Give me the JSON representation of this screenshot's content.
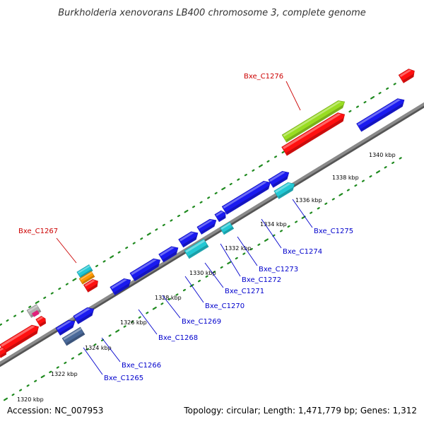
{
  "title": "Burkholderia xenovorans LB400 chromosome 3, complete genome",
  "footer": {
    "accession": "Accession: NC_007953",
    "info": "Topology: circular; Length: 1,471,779 bp; Genes: 1,312"
  },
  "colors": {
    "backbone": "#8a8a8a",
    "tick_dots": "#1f8a1f",
    "label_blue": "#0000cc",
    "label_red": "#cc0000",
    "gene_blue": "#1a1af0",
    "gene_red": "#ff1010",
    "gene_cyan": "#22c8d4",
    "gene_lime": "#99dd22",
    "gene_orange": "#ff9900",
    "gene_pink": "#e0207a",
    "gene_grey": "#b0b0b0",
    "gene_slate": "#4a6a9a"
  },
  "scale_ticks": [
    "1320 kbp",
    "1322 kbp",
    "1324 kbp",
    "1326 kbp",
    "1328 kbp",
    "1330 kbp",
    "1332 kbp",
    "1334 kbp",
    "1336 kbp",
    "1338 kbp",
    "1340 kbp"
  ],
  "gene_labels": [
    {
      "text": "Bxe_C1276",
      "color": "red"
    },
    {
      "text": "Bxe_C1267",
      "color": "red"
    },
    {
      "text": "Bxe_C1275",
      "color": "blue"
    },
    {
      "text": "Bxe_C1274",
      "color": "blue"
    },
    {
      "text": "Bxe_C1273",
      "color": "blue"
    },
    {
      "text": "Bxe_C1272",
      "color": "blue"
    },
    {
      "text": "Bxe_C1271",
      "color": "blue"
    },
    {
      "text": "Bxe_C1270",
      "color": "blue"
    },
    {
      "text": "Bxe_C1269",
      "color": "blue"
    },
    {
      "text": "Bxe_C1268",
      "color": "blue"
    },
    {
      "text": "Bxe_C1266",
      "color": "blue"
    },
    {
      "text": "Bxe_C1265",
      "color": "blue"
    }
  ]
}
